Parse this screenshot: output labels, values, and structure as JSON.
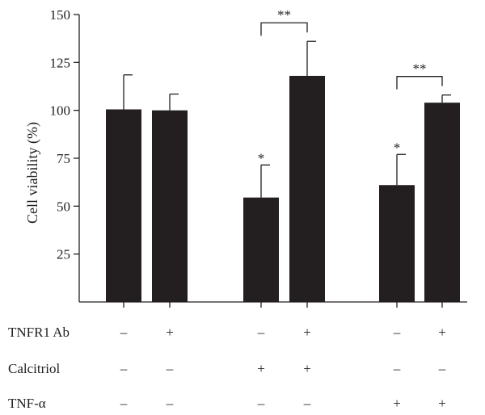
{
  "chart_data": {
    "type": "bar",
    "ylabel": "Cell viability (%)",
    "ylim": [
      0,
      150
    ],
    "yticks": [
      25,
      50,
      75,
      100,
      125,
      150
    ],
    "grid": false,
    "bar_color": "#231f20",
    "groups": [
      {
        "bars": [
          {
            "value": 100.5,
            "error": 18.0,
            "annotation": ""
          },
          {
            "value": 100.0,
            "error": 8.5,
            "annotation": ""
          }
        ],
        "bracket": ""
      },
      {
        "bars": [
          {
            "value": 54.5,
            "error": 17.0,
            "annotation": "*"
          },
          {
            "value": 118.0,
            "error": 18.0,
            "annotation": ""
          }
        ],
        "bracket": "**"
      },
      {
        "bars": [
          {
            "value": 61.0,
            "error": 16.0,
            "annotation": "*"
          },
          {
            "value": 104.0,
            "error": 4.0,
            "annotation": ""
          }
        ],
        "bracket": "**"
      }
    ],
    "treatments": [
      {
        "label": "TNFR1 Ab",
        "signs": [
          "–",
          "+",
          "–",
          "+",
          "–",
          "+"
        ]
      },
      {
        "label": "Calcitriol",
        "signs": [
          "–",
          "–",
          "+",
          "+",
          "–",
          "–"
        ]
      },
      {
        "label": "TNF-α",
        "signs": [
          "–",
          "–",
          "–",
          "–",
          "+",
          "+"
        ]
      }
    ]
  }
}
